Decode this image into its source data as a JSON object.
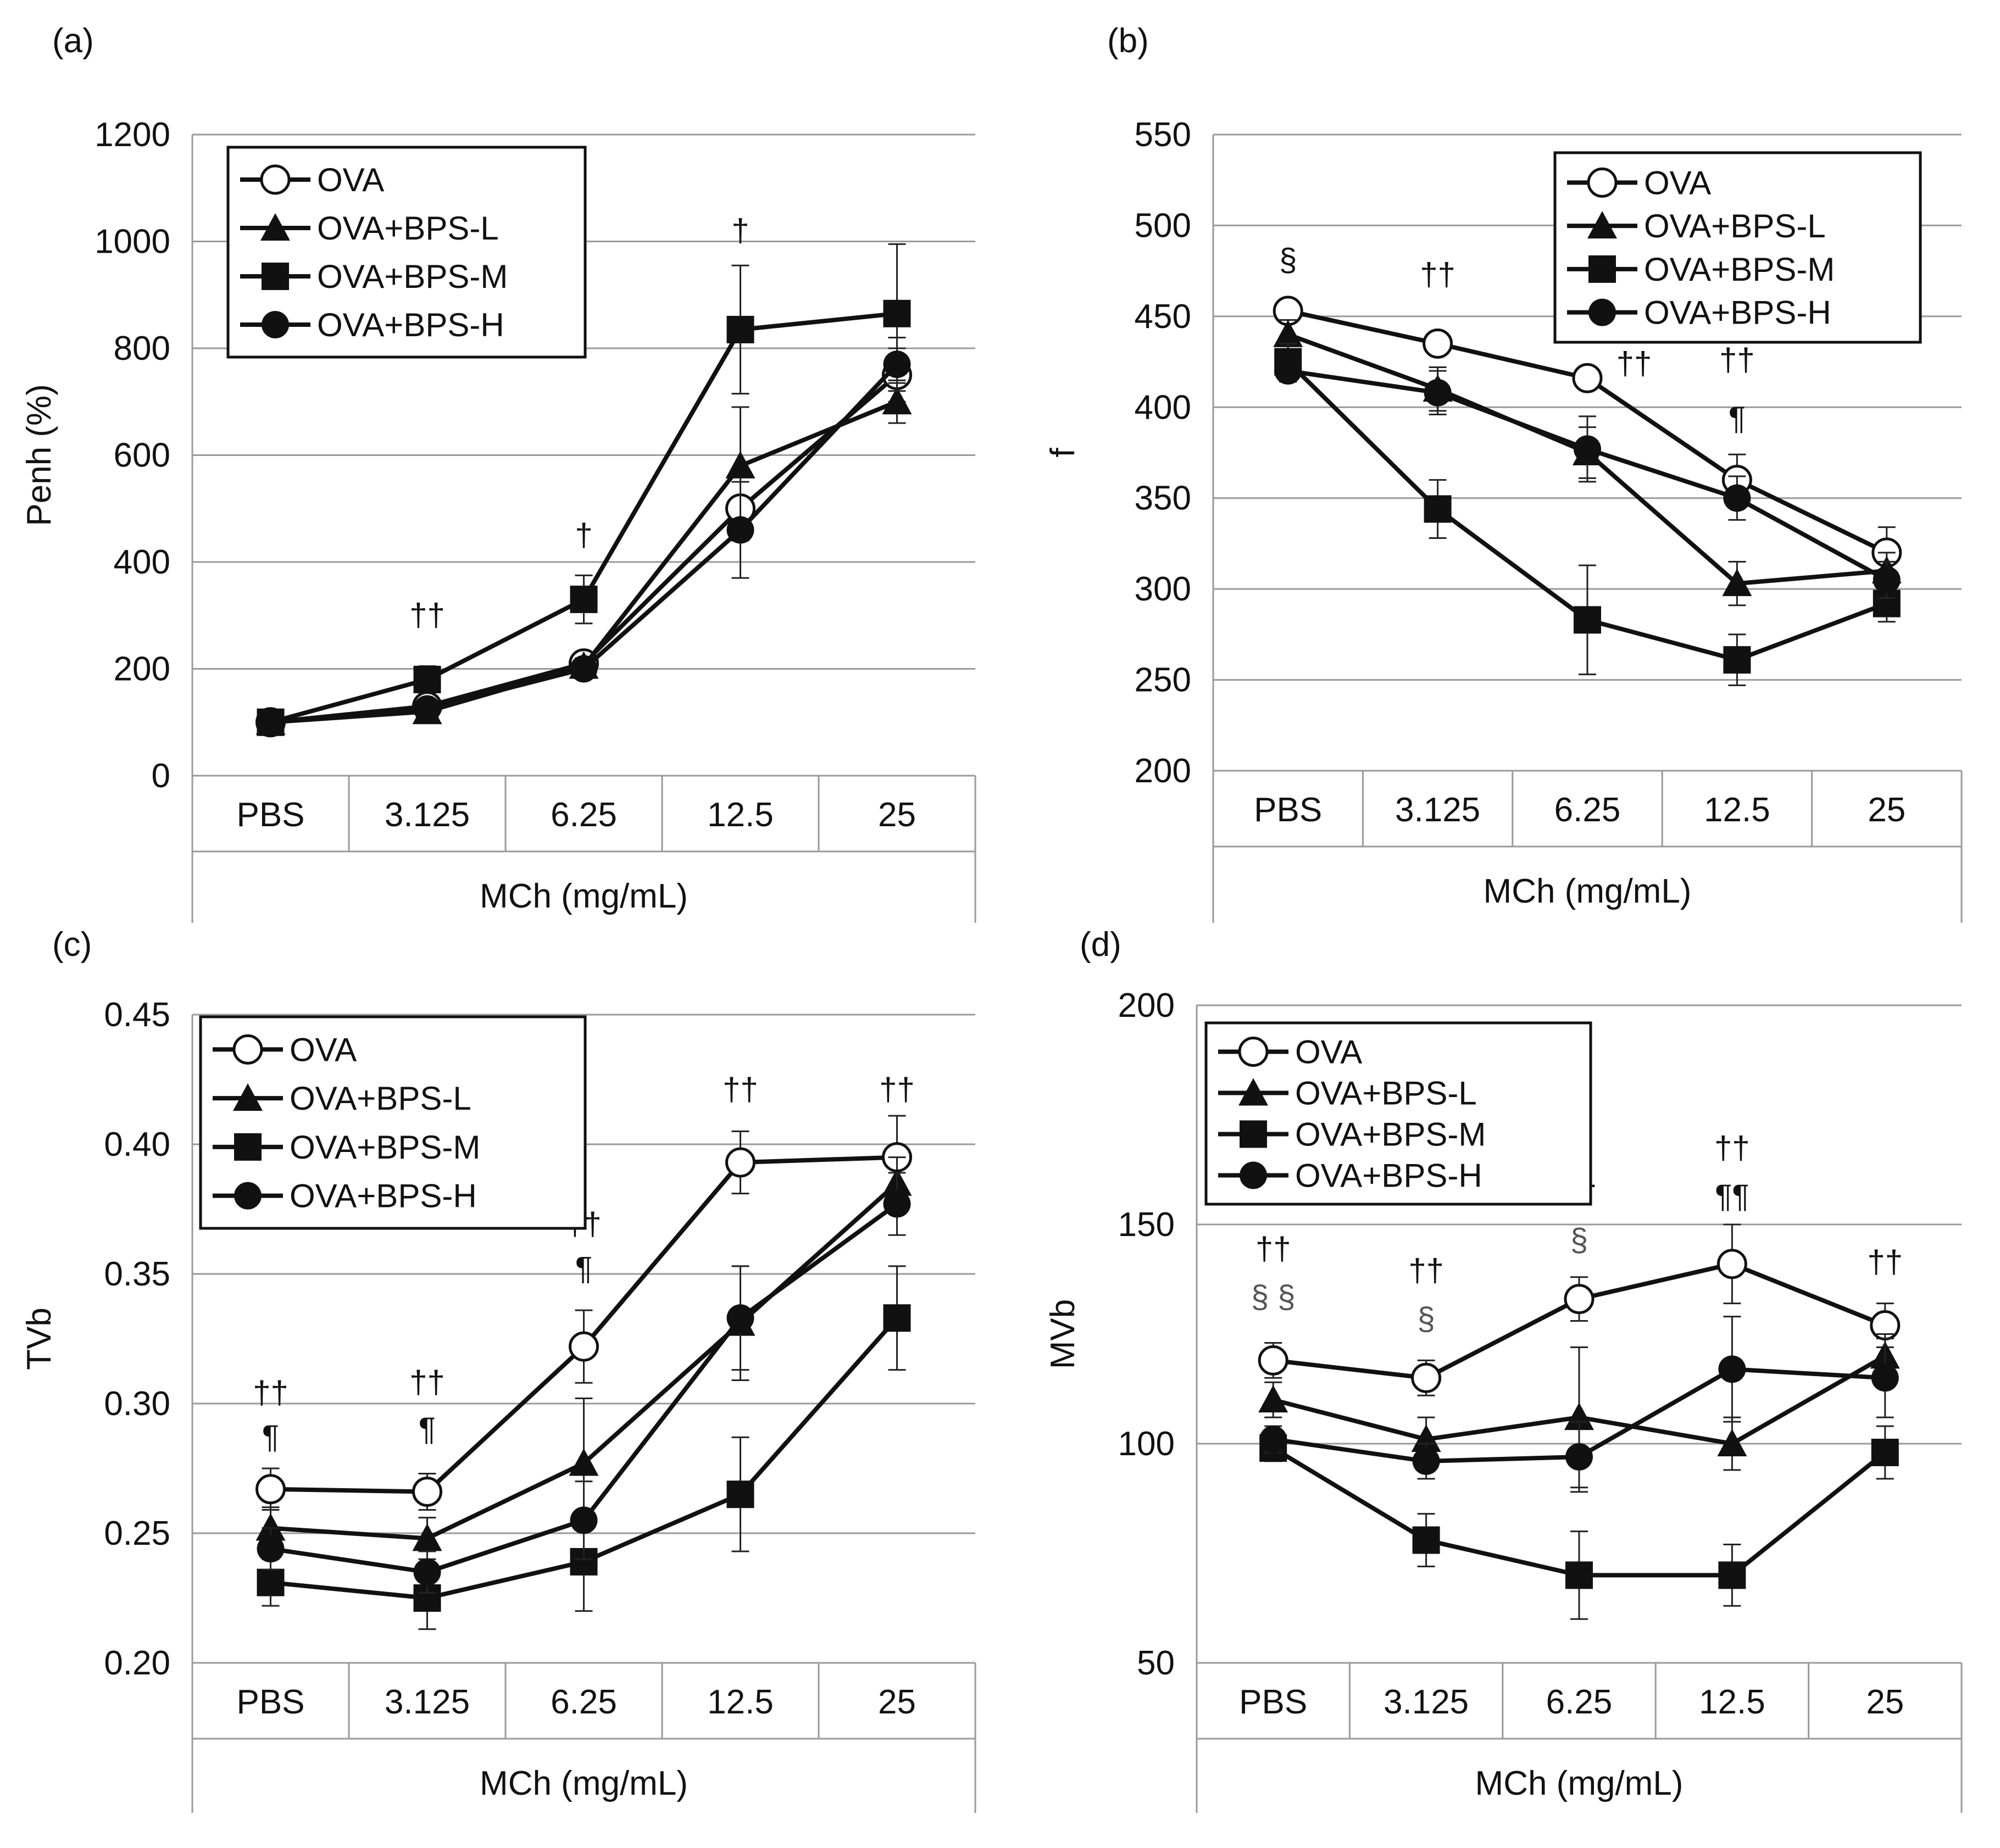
{
  "figure": {
    "series_styles": {
      "OVA": {
        "marker": "circle-open",
        "color": "#111111"
      },
      "OVA+BPS-L": {
        "marker": "triangle",
        "color": "#111111"
      },
      "OVA+BPS-M": {
        "marker": "square",
        "color": "#111111"
      },
      "OVA+BPS-H": {
        "marker": "circle",
        "color": "#111111"
      }
    }
  },
  "chart_data": [
    {
      "panel": "(a)",
      "type": "line",
      "categories": [
        "PBS",
        "3.125",
        "6.25",
        "12.5",
        "25"
      ],
      "xlabel": "MCh (mg/mL)",
      "ylabel": "Penh (%)",
      "ylim": [
        0,
        1200
      ],
      "yticks": [
        "0",
        "200",
        "400",
        "600",
        "800",
        "1000",
        "1200"
      ],
      "grid": true,
      "legend_position": "top-left",
      "series": [
        {
          "name": "OVA",
          "values": [
            100,
            130,
            210,
            500,
            750
          ],
          "errors": [
            8,
            15,
            20,
            60,
            50
          ]
        },
        {
          "name": "OVA+BPS-L",
          "values": [
            100,
            120,
            205,
            580,
            700
          ],
          "errors": [
            8,
            20,
            15,
            110,
            40
          ]
        },
        {
          "name": "OVA+BPS-M",
          "values": [
            100,
            180,
            330,
            835,
            865
          ],
          "errors": [
            10,
            25,
            45,
            120,
            130
          ]
        },
        {
          "name": "OVA+BPS-H",
          "values": [
            100,
            125,
            200,
            460,
            770
          ],
          "errors": [
            8,
            15,
            15,
            90,
            50
          ]
        }
      ],
      "annotations": [
        {
          "category": "3.125",
          "text": "††",
          "y": 280
        },
        {
          "category": "6.25",
          "text": "†",
          "y": 430
        },
        {
          "category": "12.5",
          "text": "†",
          "y": 1000
        }
      ]
    },
    {
      "panel": "(b)",
      "type": "line",
      "categories": [
        "PBS",
        "3.125",
        "6.25",
        "12.5",
        "25"
      ],
      "xlabel": "MCh (mg/mL)",
      "ylabel": "f",
      "ylim": [
        200,
        550
      ],
      "yticks": [
        "200",
        "250",
        "300",
        "350",
        "400",
        "450",
        "500",
        "550"
      ],
      "grid": true,
      "legend_position": "top-right",
      "series": [
        {
          "name": "OVA",
          "values": [
            453,
            435,
            416,
            360,
            320
          ],
          "errors": [
            5,
            6,
            5,
            14,
            14
          ]
        },
        {
          "name": "OVA+BPS-L",
          "values": [
            440,
            410,
            375,
            303,
            310
          ],
          "errors": [
            8,
            12,
            14,
            12,
            10
          ]
        },
        {
          "name": "OVA+BPS-M",
          "values": [
            425,
            344,
            283,
            261,
            292
          ],
          "errors": [
            10,
            16,
            30,
            14,
            10
          ]
        },
        {
          "name": "OVA+BPS-H",
          "values": [
            420,
            408,
            377,
            350,
            305
          ],
          "errors": [
            6,
            12,
            18,
            12,
            10
          ]
        }
      ],
      "annotations": [
        {
          "category": "PBS",
          "text": "§",
          "y": 475
        },
        {
          "category": "3.125",
          "text": "††",
          "y": 467
        },
        {
          "category": "6.25",
          "text": "††",
          "y": 418,
          "offset": "right"
        },
        {
          "category": "12.5",
          "text": "††",
          "y": 420
        },
        {
          "category": "12.5",
          "text": "¶",
          "y": 388
        }
      ]
    },
    {
      "panel": "(c)",
      "type": "line",
      "categories": [
        "PBS",
        "3.125",
        "6.25",
        "12.5",
        "25"
      ],
      "xlabel": "MCh (mg/mL)",
      "ylabel": "TVb",
      "ylim": [
        0.2,
        0.45
      ],
      "yticks": [
        "0.20",
        "0.25",
        "0.30",
        "0.35",
        "0.40",
        "0.45"
      ],
      "grid": true,
      "legend_position": "top-left",
      "series": [
        {
          "name": "OVA",
          "values": [
            0.267,
            0.266,
            0.322,
            0.393,
            0.395
          ],
          "errors": [
            0.008,
            0.007,
            0.014,
            0.012,
            0.016
          ]
        },
        {
          "name": "OVA+BPS-L",
          "values": [
            0.252,
            0.248,
            0.277,
            0.331,
            0.385
          ],
          "errors": [
            0.008,
            0.008,
            0.025,
            0.022,
            0.01
          ]
        },
        {
          "name": "OVA+BPS-M",
          "values": [
            0.231,
            0.225,
            0.239,
            0.265,
            0.333
          ],
          "errors": [
            0.009,
            0.012,
            0.019,
            0.022,
            0.02
          ]
        },
        {
          "name": "OVA+BPS-H",
          "values": [
            0.244,
            0.235,
            0.255,
            0.333,
            0.377
          ],
          "errors": [
            0.008,
            0.008,
            0.015,
            0.02,
            0.012
          ]
        }
      ],
      "annotations": [
        {
          "category": "PBS",
          "text": "††",
          "y": 0.3
        },
        {
          "category": "PBS",
          "text": "¶",
          "y": 0.283
        },
        {
          "category": "3.125",
          "text": "††",
          "y": 0.304
        },
        {
          "category": "3.125",
          "text": "¶",
          "y": 0.286
        },
        {
          "category": "6.25",
          "text": "††",
          "y": 0.365
        },
        {
          "category": "6.25",
          "text": "¶",
          "y": 0.348
        },
        {
          "category": "12.5",
          "text": "††",
          "y": 0.417
        },
        {
          "category": "25",
          "text": "††",
          "y": 0.417
        }
      ]
    },
    {
      "panel": "(d)",
      "type": "line",
      "categories": [
        "PBS",
        "3.125",
        "6.25",
        "12.5",
        "25"
      ],
      "xlabel": "MCh (mg/mL)",
      "ylabel": "MVb",
      "ylim": [
        50,
        200
      ],
      "yticks": [
        "50",
        "100",
        "150",
        "200"
      ],
      "grid": true,
      "legend_position": "top-left",
      "series": [
        {
          "name": "OVA",
          "values": [
            119,
            115,
            133,
            141,
            127
          ],
          "errors": [
            4,
            4,
            5,
            9,
            5
          ]
        },
        {
          "name": "OVA+BPS-L",
          "values": [
            110,
            101,
            106,
            100,
            120
          ],
          "errors": [
            4,
            5,
            16,
            6,
            5
          ]
        },
        {
          "name": "OVA+BPS-M",
          "values": [
            99,
            78,
            70,
            70,
            98
          ],
          "errors": [
            3,
            6,
            10,
            7,
            6
          ]
        },
        {
          "name": "OVA+BPS-H",
          "values": [
            101,
            96,
            97,
            117,
            115
          ],
          "errors": [
            3,
            4,
            8,
            12,
            9
          ]
        }
      ],
      "annotations": [
        {
          "category": "PBS",
          "text": "††",
          "y": 142
        },
        {
          "category": "PBS",
          "text": "§ §",
          "y": 131,
          "color": "gray"
        },
        {
          "category": "3.125",
          "text": "††",
          "y": 137
        },
        {
          "category": "3.125",
          "text": "§",
          "y": 126,
          "color": "gray"
        },
        {
          "category": "6.25",
          "text": "††",
          "y": 155
        },
        {
          "category": "6.25",
          "text": "§",
          "y": 144,
          "color": "gray"
        },
        {
          "category": "12.5",
          "text": "††",
          "y": 165
        },
        {
          "category": "12.5",
          "text": "¶¶",
          "y": 154
        },
        {
          "category": "25",
          "text": "††",
          "y": 139
        }
      ]
    }
  ]
}
